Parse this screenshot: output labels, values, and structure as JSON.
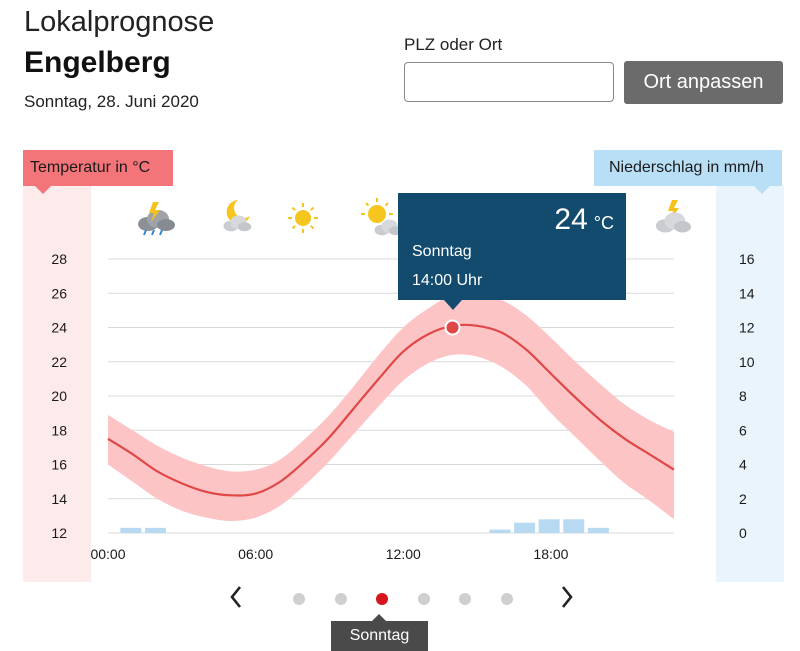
{
  "header": {
    "title": "Lokalprognose",
    "location": "Engelberg",
    "date": "Sonntag, 28. Juni 2020"
  },
  "search": {
    "label": "PLZ oder Ort",
    "value": "",
    "placeholder": "",
    "button_label": "Ort anpassen"
  },
  "tooltip": {
    "temperature": "24",
    "unit": "°C",
    "day": "Sonntag",
    "time": "14:00 Uhr"
  },
  "navigation": {
    "prev_icon": "chevron-left-icon",
    "next_icon": "chevron-right-icon",
    "dots": 6,
    "active_dot": 2,
    "day_label": "Sonntag"
  },
  "colors": {
    "temperature_line": "#e04848",
    "temperature_band": "#fdc4c6",
    "precip_bar": "#b7daf2",
    "tooltip_bg": "#134b6e",
    "active_dot": "#d7151c",
    "button_bg": "#6b6b6b"
  },
  "weather_icons": [
    "thunderstorm-rain-night-icon",
    "moon-cloud-icon",
    "sun-icon",
    "sun-cloud-icon",
    "sun-cloud-icon",
    "sun-icon",
    "thunderstorm-cloud-icon"
  ],
  "chart_data": {
    "type": "line",
    "left_axis_label": "Temperatur in °C",
    "right_axis_label": "Niederschlag in mm/h",
    "x_ticks": [
      "00:00",
      "06:00",
      "12:00",
      "18:00"
    ],
    "y_left_ticks": [
      12,
      14,
      16,
      18,
      20,
      22,
      24,
      26,
      28
    ],
    "y_right_ticks": [
      0,
      2,
      4,
      6,
      8,
      10,
      12,
      14,
      16
    ],
    "ylim_left": [
      12,
      28
    ],
    "ylim_right": [
      0,
      16
    ],
    "xlim_hours": [
      0,
      23
    ],
    "grid": true,
    "temperature": {
      "hours": [
        0,
        1,
        2,
        3,
        4,
        5,
        6,
        7,
        8,
        9,
        10,
        11,
        12,
        13,
        14,
        15,
        16,
        17,
        18,
        19,
        20,
        21,
        22,
        23
      ],
      "values": [
        17.5,
        16.6,
        15.6,
        14.9,
        14.4,
        14.2,
        14.3,
        15.0,
        16.2,
        17.6,
        19.3,
        21.0,
        22.6,
        23.6,
        24.1,
        24.1,
        23.7,
        22.7,
        21.3,
        19.9,
        18.6,
        17.5,
        16.6,
        15.7
      ],
      "band_low": [
        16.0,
        15.0,
        14.0,
        13.3,
        12.9,
        12.7,
        12.9,
        13.6,
        14.8,
        16.2,
        17.8,
        19.4,
        20.9,
        21.9,
        22.4,
        22.3,
        21.7,
        20.6,
        19.0,
        17.6,
        16.2,
        14.9,
        13.9,
        12.8
      ],
      "band_high": [
        18.9,
        18.0,
        17.1,
        16.4,
        15.9,
        15.6,
        15.7,
        16.3,
        17.5,
        18.9,
        20.6,
        22.4,
        24.0,
        25.1,
        25.9,
        26.0,
        25.6,
        24.7,
        23.4,
        22.0,
        20.7,
        19.5,
        18.6,
        17.9
      ]
    },
    "precipitation": {
      "hours": [
        1,
        2,
        16,
        17,
        18,
        19,
        20
      ],
      "values": [
        0.3,
        0.3,
        0.2,
        0.6,
        0.8,
        0.8,
        0.3
      ]
    },
    "highlight": {
      "hour": 14,
      "value": 24
    }
  }
}
